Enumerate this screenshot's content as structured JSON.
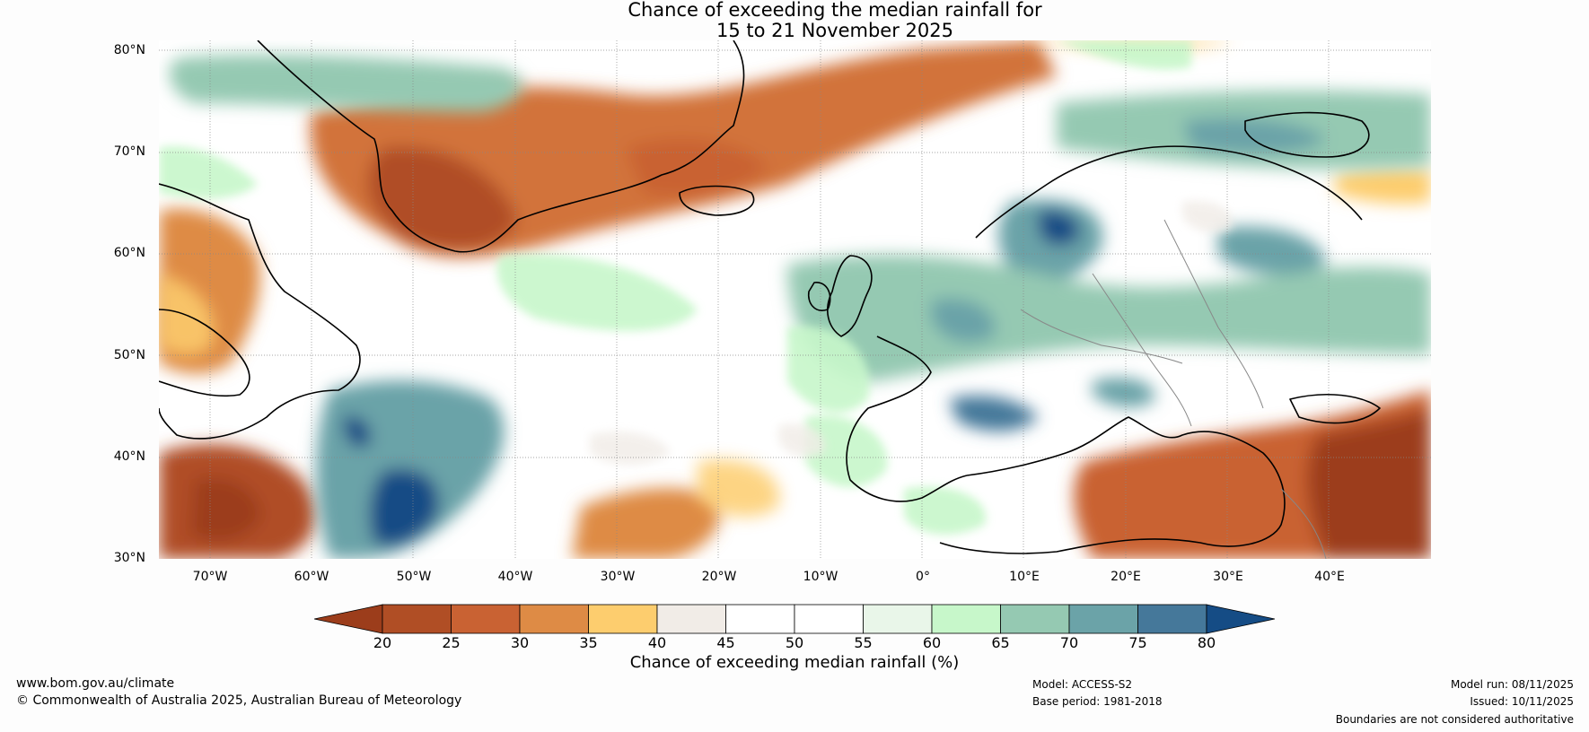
{
  "title": {
    "line1": "Chance of exceeding the median rainfall for",
    "line2": "15 to 21 November 2025"
  },
  "axes": {
    "lat_labels": [
      "80°N",
      "70°N",
      "60°N",
      "50°N",
      "40°N",
      "30°N"
    ],
    "lon_labels": [
      "70°W",
      "60°W",
      "50°W",
      "40°W",
      "30°W",
      "20°W",
      "10°W",
      "0°",
      "10°E",
      "20°E",
      "30°E",
      "40°E"
    ],
    "lat_range": [
      30,
      81
    ],
    "lon_range": [
      -75,
      50
    ]
  },
  "colorbar": {
    "title": "Chance of exceeding median rainfall (%)",
    "tick_labels": [
      "20",
      "25",
      "30",
      "35",
      "40",
      "45",
      "50",
      "55",
      "60",
      "65",
      "70",
      "75",
      "80"
    ],
    "colors": [
      "#9c3d1b",
      "#b04e25",
      "#c96233",
      "#de8b45",
      "#fdcd6e",
      "#f1ece7",
      "#ffffff",
      "#ffffff",
      "#e9f6e9",
      "#c7f7ca",
      "#95c9b2",
      "#6ba3a8",
      "#45789a",
      "#154c85"
    ]
  },
  "footer": {
    "website": "www.bom.gov.au/climate",
    "copyright": "© Commonwealth of Australia 2025, Australian Bureau of Meteorology",
    "model": "Model: ACCESS-S2",
    "base_period": "Base period: 1981-2018",
    "model_run": "Model run: 08/11/2025",
    "issued": "Issued: 10/11/2025",
    "disclaimer": "Boundaries are not considered authoritative"
  }
}
